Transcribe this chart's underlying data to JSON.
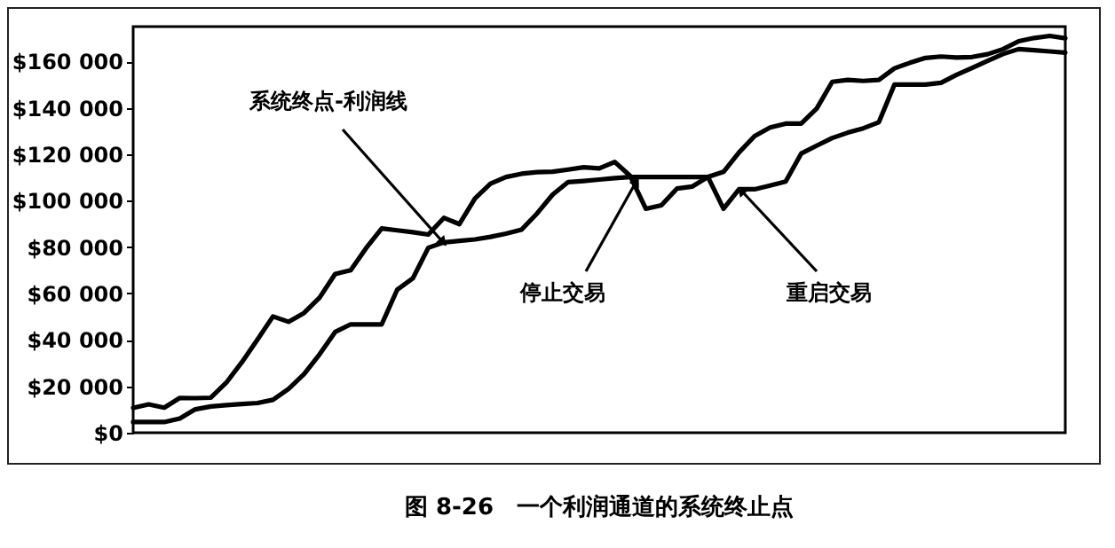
{
  "chart_data": {
    "type": "line",
    "title": "图 8-26　一个利润通道的系统终止点",
    "categories": [
      null,
      null,
      null,
      null,
      null,
      null,
      null,
      null,
      null,
      null,
      null,
      null,
      null,
      null,
      null,
      null,
      null,
      null,
      null,
      null,
      null,
      null,
      null,
      null,
      null,
      null,
      null,
      null,
      null,
      null,
      null,
      null,
      null,
      null,
      null,
      null,
      null,
      null,
      null,
      null,
      null,
      null,
      null,
      null,
      null,
      null,
      null,
      null,
      null,
      null,
      null,
      null,
      null,
      null,
      null,
      null,
      null,
      null,
      null,
      null,
      null
    ],
    "ylim": [
      0,
      175000
    ],
    "yticks": [
      {
        "value": 0,
        "label": "$0"
      },
      {
        "value": 20000,
        "label": "$20 000"
      },
      {
        "value": 40000,
        "label": "$40 000"
      },
      {
        "value": 60000,
        "label": "$60 000"
      },
      {
        "value": 80000,
        "label": "$80 000"
      },
      {
        "value": 100000,
        "label": "$100 000"
      },
      {
        "value": 120000,
        "label": "$120 000"
      },
      {
        "value": 140000,
        "label": "$140 000"
      },
      {
        "value": 160000,
        "label": "$160 000"
      }
    ],
    "series": [
      {
        "color": "#000000",
        "values": [
          10700,
          12200,
          10800,
          15000,
          14900,
          15100,
          21600,
          30400,
          40100,
          50100,
          47800,
          51600,
          58200,
          68400,
          70000,
          79600,
          88000,
          87200,
          86400,
          85400,
          92600,
          89900,
          100900,
          107300,
          110200,
          111600,
          112300,
          112500,
          113400,
          114400,
          113900,
          116700,
          110600,
          96500,
          98000,
          105200,
          106100,
          110200,
          112400,
          120800,
          127800,
          131500,
          133200,
          133200,
          139700,
          151200,
          152000,
          151600,
          152000,
          157000,
          159400,
          161500,
          162100,
          161700,
          161900,
          163100,
          165300,
          168700,
          170100,
          171000,
          170000
        ]
      },
      {
        "color": "#000000",
        "values": [
          4600,
          4600,
          4600,
          6100,
          10100,
          11300,
          11900,
          12400,
          12800,
          14200,
          18900,
          25300,
          33800,
          43400,
          46700,
          46700,
          46700,
          61700,
          66500,
          79700,
          82000,
          82700,
          83300,
          84400,
          85800,
          87500,
          94500,
          102600,
          108000,
          108500,
          109100,
          109700,
          110200,
          110200,
          110200,
          110200,
          110200,
          110200,
          96500,
          104900,
          104900,
          106500,
          108200,
          120300,
          123700,
          127000,
          129300,
          131200,
          133800,
          150000,
          150000,
          150000,
          150800,
          154200,
          157200,
          160200,
          163200,
          165300,
          164800,
          164300,
          163800
        ]
      }
    ],
    "annotations": [
      "系统终点-利润线",
      "停止交易",
      "重启交易"
    ]
  }
}
